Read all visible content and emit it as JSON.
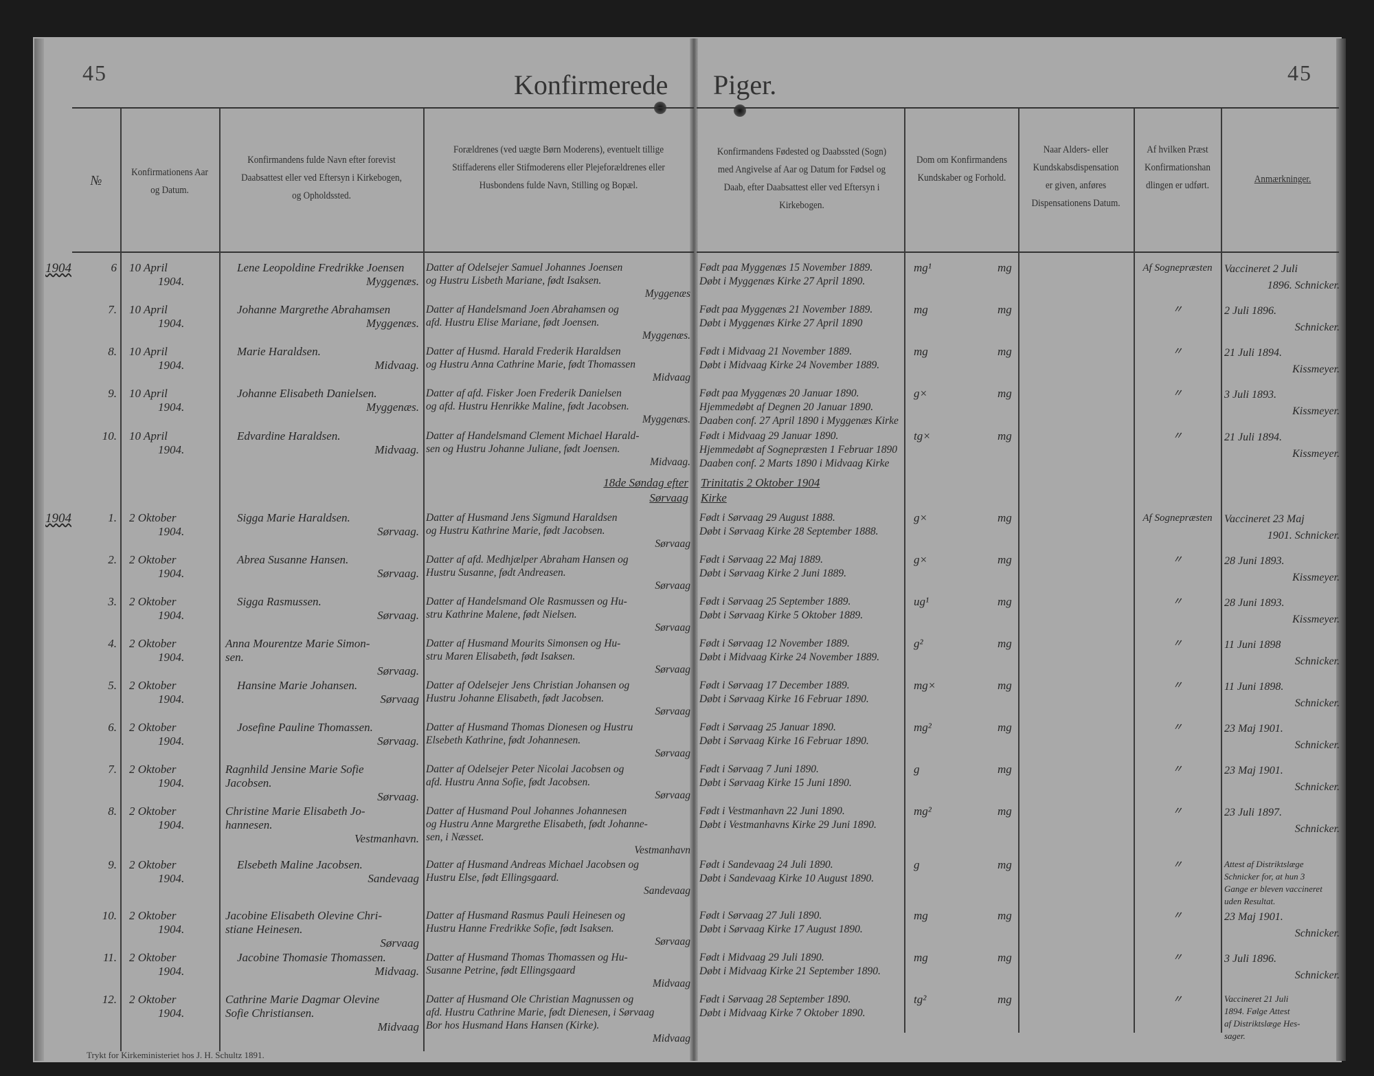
{
  "page_numbers": {
    "left": "45",
    "right": "45"
  },
  "title": {
    "left": "Konfirmerede",
    "right": "Piger."
  },
  "headers": {
    "nr": "№",
    "date": "Konfirmationens Aar og Datum.",
    "name": "Konfirmandens fulde Navn efter forevist Daabsattest eller ved Eftersyn i Kirkebogen, og Opholdssted.",
    "parents": "Forældrenes (ved uægte Børn Moderens), eventuelt tillige Stiffaderens eller Stifmoderens eller Plejeforældrenes eller Husbondens fulde Navn, Stilling og Bopæl.",
    "birth": "Konfirmandens Fødested og Daabssted (Sogn) med Angivelse af Aar og Datum for Fødsel og Daab, efter Daabsattest eller ved Eftersyn i Kirkebogen.",
    "verdict": "Dom om Konfirmandens Kundskaber og Forhold.",
    "dispensation": "Naar Alders- eller Kundskabsdispensation er given, anføres Dispensationens Datum.",
    "priest": "Af hvilken Præst Konfirmationshandlingen er udført.",
    "remarks": "Anmærkninger."
  },
  "groups": [
    {
      "year": "1904",
      "section": null
    },
    {
      "year": "1904",
      "section": {
        "left_line": "18de Søndag efter",
        "left_place": "Sørvaag",
        "right_line": "Trinitatis 2 Oktober 1904",
        "right_place": "Kirke"
      }
    }
  ],
  "entries": [
    {
      "nr": "6",
      "date": [
        "10 April",
        "1904."
      ],
      "name": [
        "Lene Leopoldine Fredrikke Joensen"
      ],
      "residence": "Myggenæs.",
      "parents": [
        "Datter af Odelsejer Samuel Johannes Joensen",
        "og Hustru Lisbeth Mariane, født Isaksen."
      ],
      "parents_place": "Myggenæs",
      "birth": [
        "Født paa Myggenæs 15 November 1889.",
        "Døbt i Myggenæs Kirke 27 April 1890."
      ],
      "knowledge": "mg¹",
      "conduct": "mg",
      "dispensation": "",
      "priest": "Af Sognepræsten",
      "remarks": [
        "Vaccineret 2 Juli",
        "1896.   Schnicker."
      ]
    },
    {
      "nr": "7.",
      "date": [
        "10 April",
        "1904."
      ],
      "name": [
        "Johanne Margrethe Abrahamsen"
      ],
      "residence": "Myggenæs.",
      "parents": [
        "Datter af Handelsmand Joen Abrahamsen og",
        "afd. Hustru Elise Mariane, født Joensen."
      ],
      "parents_place": "Myggenæs.",
      "birth": [
        "Født paa Myggenæs 21 November 1889.",
        "Døbt i Myggenæs Kirke 27 April 1890"
      ],
      "knowledge": "mg",
      "conduct": "mg",
      "dispensation": "",
      "priest": "〃",
      "remarks": [
        "2 Juli 1896.",
        "Schnicker."
      ]
    },
    {
      "nr": "8.",
      "date": [
        "10 April",
        "1904."
      ],
      "name": [
        "Marie Haraldsen."
      ],
      "residence": "Midvaag.",
      "parents": [
        "Datter af Husmd. Harald Frederik Haraldsen",
        "og Hustru Anna Cathrine Marie, født Thomassen"
      ],
      "parents_place": "Midvaag",
      "birth": [
        "Født i Midvaag 21 November 1889.",
        "Døbt i Midvaag Kirke 24 November 1889."
      ],
      "knowledge": "mg",
      "conduct": "mg",
      "dispensation": "",
      "priest": "〃",
      "remarks": [
        "21 Juli 1894.",
        "Kissmeyer."
      ]
    },
    {
      "nr": "9.",
      "date": [
        "10 April",
        "1904."
      ],
      "name": [
        "Johanne Elisabeth Danielsen."
      ],
      "residence": "Myggenæs.",
      "parents": [
        "Datter af afd. Fisker Joen Frederik Danielsen",
        "og afd. Hustru Henrikke Maline, født Jacobsen."
      ],
      "parents_place": "Myggenæs.",
      "birth": [
        "Født paa Myggenæs 20 Januar 1890.",
        "Hjemmedøbt af Degnen 20 Januar 1890.",
        "Daaben conf. 27 April 1890 i Myggenæs Kirke"
      ],
      "knowledge": "g×",
      "conduct": "mg",
      "dispensation": "",
      "priest": "〃",
      "remarks": [
        "3 Juli 1893.",
        "Kissmeyer."
      ]
    },
    {
      "nr": "10.",
      "date": [
        "10 April",
        "1904."
      ],
      "name": [
        "Edvardine Haraldsen."
      ],
      "residence": "Midvaag.",
      "parents": [
        "Datter af Handelsmand Clement Michael Harald-",
        "sen og Hustru Johanne Juliane, født Joensen."
      ],
      "parents_place": "Midvaag.",
      "birth": [
        "Født i Midvaag 29 Januar 1890.",
        "Hjemmedøbt af Sognepræsten 1 Februar 1890",
        "Daaben conf. 2 Marts 1890 i Midvaag Kirke"
      ],
      "knowledge": "tg×",
      "conduct": "mg",
      "dispensation": "",
      "priest": "〃",
      "remarks": [
        "21 Juli 1894.",
        "Kissmeyer."
      ]
    },
    {
      "nr": "1.",
      "date": [
        "2 Oktober",
        "1904."
      ],
      "name": [
        "Sigga Marie Haraldsen."
      ],
      "residence": "Sørvaag.",
      "parents": [
        "Datter af Husmand Jens Sigmund Haraldsen",
        "og Hustru Kathrine Marie, født Jacobsen."
      ],
      "parents_place": "Sørvaag",
      "birth": [
        "Født i Sørvaag 29 August 1888.",
        "Døbt i Sørvaag Kirke 28 September 1888."
      ],
      "knowledge": "g×",
      "conduct": "mg",
      "dispensation": "",
      "priest": "Af Sognepræsten",
      "remarks": [
        "Vaccineret 23 Maj",
        "1901.   Schnicker."
      ]
    },
    {
      "nr": "2.",
      "date": [
        "2 Oktober",
        "1904."
      ],
      "name": [
        "Abrea Susanne Hansen."
      ],
      "residence": "Sørvaag.",
      "parents": [
        "Datter af afd. Medhjælper Abraham Hansen og",
        "Hustru Susanne, født Andreasen."
      ],
      "parents_place": "Sørvaag",
      "birth": [
        "Født i Sørvaag 22 Maj 1889.",
        "Døbt i Sørvaag Kirke 2 Juni 1889."
      ],
      "knowledge": "g×",
      "conduct": "mg",
      "dispensation": "",
      "priest": "〃",
      "remarks": [
        "28 Juni 1893.",
        "Kissmeyer."
      ]
    },
    {
      "nr": "3.",
      "date": [
        "2 Oktober",
        "1904."
      ],
      "name": [
        "Sigga Rasmussen."
      ],
      "residence": "Sørvaag.",
      "parents": [
        "Datter af Handelsmand Ole Rasmussen og Hu-",
        "stru Kathrine Malene, født Nielsen."
      ],
      "parents_place": "Sørvaag",
      "birth": [
        "Født i Sørvaag 25 September 1889.",
        "Døbt i Sørvaag Kirke 5 Oktober 1889."
      ],
      "knowledge": "ug¹",
      "conduct": "mg",
      "dispensation": "",
      "priest": "〃",
      "remarks": [
        "28 Juni 1893.",
        "Kissmeyer."
      ]
    },
    {
      "nr": "4.",
      "date": [
        "2 Oktober",
        "1904."
      ],
      "name": [
        "Anna Mourentze Marie Simon-",
        "sen."
      ],
      "residence": "Sørvaag.",
      "parents": [
        "Datter af Husmand Mourits Simonsen og Hu-",
        "stru Maren Elisabeth, født Isaksen."
      ],
      "parents_place": "Sørvaag",
      "birth": [
        "Født i Sørvaag 12 November 1889.",
        "Døbt i Midvaag Kirke 24 November 1889."
      ],
      "knowledge": "g²",
      "conduct": "mg",
      "dispensation": "",
      "priest": "〃",
      "remarks": [
        "11 Juni 1898",
        "Schnicker."
      ]
    },
    {
      "nr": "5.",
      "date": [
        "2 Oktober",
        "1904."
      ],
      "name": [
        "Hansine Marie Johansen."
      ],
      "residence": "Sørvaag",
      "parents": [
        "Datter af Odelsejer Jens Christian Johansen og",
        "Hustru Johanne Elisabeth, født Jacobsen."
      ],
      "parents_place": "Sørvaag",
      "birth": [
        "Født i Sørvaag 17 December 1889.",
        "Døbt i Sørvaag Kirke 16 Februar 1890."
      ],
      "knowledge": "mg×",
      "conduct": "mg",
      "dispensation": "",
      "priest": "〃",
      "remarks": [
        "11 Juni 1898.",
        "Schnicker."
      ]
    },
    {
      "nr": "6.",
      "date": [
        "2 Oktober",
        "1904."
      ],
      "name": [
        "Josefine Pauline Thomassen."
      ],
      "residence": "Sørvaag.",
      "parents": [
        "Datter af Husmand Thomas Dionesen og Hustru",
        "Elsebeth Kathrine, født Johannesen."
      ],
      "parents_place": "Sørvaag",
      "birth": [
        "Født i Sørvaag 25 Januar 1890.",
        "Døbt i Sørvaag Kirke 16 Februar 1890."
      ],
      "knowledge": "mg²",
      "conduct": "mg",
      "dispensation": "",
      "priest": "〃",
      "remarks": [
        "23 Maj 1901.",
        "Schnicker."
      ]
    },
    {
      "nr": "7.",
      "date": [
        "2 Oktober",
        "1904."
      ],
      "name": [
        "Ragnhild Jensine Marie Sofie",
        "Jacobsen."
      ],
      "residence": "Sørvaag.",
      "parents": [
        "Datter af Odelsejer Peter Nicolai Jacobsen og",
        "afd. Hustru Anna Sofie, født Jacobsen."
      ],
      "parents_place": "Sørvaag",
      "birth": [
        "Født i Sørvaag 7 Juni 1890.",
        "Døbt i Sørvaag Kirke 15 Juni 1890."
      ],
      "knowledge": "g",
      "conduct": "mg",
      "dispensation": "",
      "priest": "〃",
      "remarks": [
        "23 Maj 1901.",
        "Schnicker."
      ]
    },
    {
      "nr": "8.",
      "date": [
        "2 Oktober",
        "1904."
      ],
      "name": [
        "Christine Marie Elisabeth Jo-",
        "hannesen."
      ],
      "residence": "Vestmanhavn.",
      "parents": [
        "Datter af Husmand Poul Johannes Johannesen",
        "og Hustru Anne Margrethe Elisabeth, født Johanne-",
        "sen, i Næsset."
      ],
      "parents_place": "Vestmanhavn",
      "birth": [
        "Født i Vestmanhavn 22 Juni 1890.",
        "Døbt i Vestmanhavns Kirke 29 Juni 1890."
      ],
      "knowledge": "mg²",
      "conduct": "mg",
      "dispensation": "",
      "priest": "〃",
      "remarks": [
        "23 Juli 1897.",
        "Schnicker."
      ]
    },
    {
      "nr": "9.",
      "date": [
        "2 Oktober",
        "1904."
      ],
      "name": [
        "Elsebeth Maline Jacobsen."
      ],
      "residence": "Sandevaag",
      "parents": [
        "Datter af Husmand Andreas Michael Jacobsen og",
        "Hustru Else, født Ellingsgaard."
      ],
      "parents_place": "Sandevaag",
      "birth": [
        "Født i Sandevaag 24 Juli 1890.",
        "Døbt i Sandevaag Kirke 10 August 1890."
      ],
      "knowledge": "g",
      "conduct": "mg",
      "dispensation": "",
      "priest": "〃",
      "remarks": [
        "Attest af Distriktslæge",
        "Schnicker for, at hun 3",
        "Gange er bleven vaccineret",
        "uden Resultat."
      ]
    },
    {
      "nr": "10.",
      "date": [
        "2 Oktober",
        "1904."
      ],
      "name": [
        "Jacobine Elisabeth Olevine Chri-",
        "stiane Heinesen."
      ],
      "residence": "Sørvaag",
      "parents": [
        "Datter af Husmand Rasmus Pauli Heinesen og",
        "Hustru Hanne Fredrikke Sofie, født Isaksen."
      ],
      "parents_place": "Sørvaag",
      "birth": [
        "Født i Sørvaag 27 Juli 1890.",
        "Døbt i Sørvaag Kirke 17 August 1890."
      ],
      "knowledge": "mg",
      "conduct": "mg",
      "dispensation": "",
      "priest": "〃",
      "remarks": [
        "23 Maj 1901.",
        "Schnicker."
      ]
    },
    {
      "nr": "11.",
      "date": [
        "2 Oktober",
        "1904."
      ],
      "name": [
        "Jacobine Thomasie Thomassen."
      ],
      "residence": "Midvaag.",
      "parents": [
        "Datter af Husmand Thomas Thomassen og Hu-",
        "Susanne Petrine, født Ellingsgaard"
      ],
      "parents_place": "Midvaag",
      "birth": [
        "Født i Midvaag 29 Juli 1890.",
        "Døbt i Midvaag Kirke 21 September 1890."
      ],
      "knowledge": "mg",
      "conduct": "mg",
      "dispensation": "",
      "priest": "〃",
      "remarks": [
        "3 Juli 1896.",
        "Schnicker."
      ]
    },
    {
      "nr": "12.",
      "date": [
        "2 Oktober",
        "1904."
      ],
      "name": [
        "Cathrine Marie Dagmar Olevine",
        "Sofie Christiansen."
      ],
      "residence": "Midvaag",
      "parents": [
        "Datter af Husmand Ole Christian Magnussen og",
        "afd. Hustru Cathrine Marie, født Dienesen, i Sørvaag",
        "Bor hos Husmand Hans Hansen (Kirke)."
      ],
      "parents_place": "Midvaag",
      "birth": [
        "Født i Sørvaag 28 September 1890.",
        "Døbt i Midvaag Kirke 7 Oktober 1890."
      ],
      "knowledge": "tg²",
      "conduct": "mg",
      "dispensation": "",
      "priest": "〃",
      "remarks": [
        "Vaccineret 21 Juli",
        "1894. Følge Attest",
        "af Distriktslæge Hes-",
        "sager."
      ]
    }
  ],
  "footer": "Trykt for Kirkeministeriet hos J. H. Schultz 1891."
}
